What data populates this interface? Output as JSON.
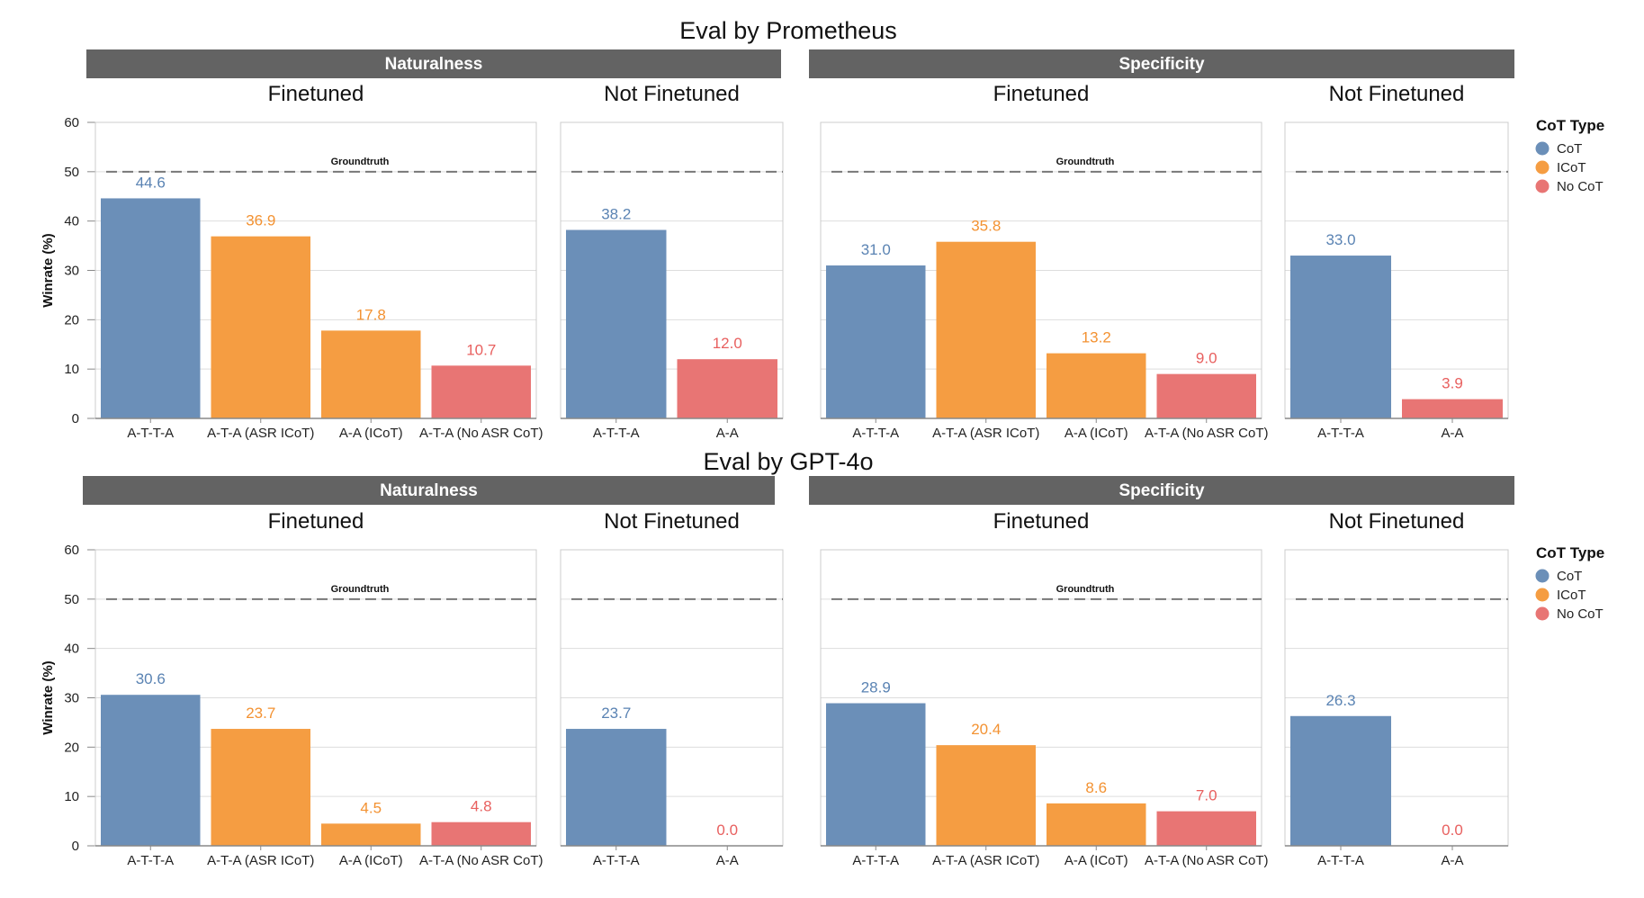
{
  "colors": {
    "cot": "#6b8fb8",
    "icot": "#f59d42",
    "nocot": "#e87574",
    "cot_label": "#5a83b3",
    "icot_label": "#f39232",
    "nocot_label": "#e8605f",
    "strip": "#636363",
    "strip_text": "#ffffff",
    "grid": "#dddddd",
    "frame": "#cccccc",
    "axis": "#888888",
    "groundtruth_line": "#777777"
  },
  "chart_data": [
    {
      "type": "bar",
      "title": "Eval by Prometheus",
      "ylabel": "Winrate (%)",
      "ylim": [
        0,
        60
      ],
      "yticks": [
        0,
        10,
        20,
        30,
        40,
        50,
        60
      ],
      "groundtruth": {
        "label": "Groundtruth",
        "value": 50
      },
      "legend": {
        "title": "CoT Type",
        "position": "right",
        "items": [
          {
            "key": "cot",
            "label": "CoT"
          },
          {
            "key": "icot",
            "label": "ICoT"
          },
          {
            "key": "nocot",
            "label": "No CoT"
          }
        ]
      },
      "facets": [
        {
          "metric": "Naturalness",
          "groups": [
            {
              "name": "Finetuned",
              "categories": [
                "A-T-T-A",
                "A-T-A (ASR ICoT)",
                "A-A (ICoT)",
                "A-T-A (No ASR CoT)"
              ],
              "types": [
                "cot",
                "icot",
                "icot",
                "nocot"
              ],
              "values": [
                44.6,
                36.9,
                17.8,
                10.7
              ],
              "labels": [
                "44.6",
                "36.9",
                "17.8",
                "10.7"
              ]
            },
            {
              "name": "Not Finetuned",
              "categories": [
                "A-T-T-A",
                "A-A"
              ],
              "types": [
                "cot",
                "nocot"
              ],
              "values": [
                38.2,
                12.0
              ],
              "labels": [
                "38.2",
                "12.0"
              ]
            }
          ]
        },
        {
          "metric": "Specificity",
          "groups": [
            {
              "name": "Finetuned",
              "categories": [
                "A-T-T-A",
                "A-T-A (ASR ICoT)",
                "A-A (ICoT)",
                "A-T-A (No ASR CoT)"
              ],
              "types": [
                "cot",
                "icot",
                "icot",
                "nocot"
              ],
              "values": [
                31.0,
                35.8,
                13.2,
                9.0
              ],
              "labels": [
                "31.0",
                "35.8",
                "13.2",
                "9.0"
              ]
            },
            {
              "name": "Not Finetuned",
              "categories": [
                "A-T-T-A",
                "A-A"
              ],
              "types": [
                "cot",
                "nocot"
              ],
              "values": [
                33.0,
                3.9
              ],
              "labels": [
                "33.0",
                "3.9"
              ]
            }
          ]
        }
      ]
    },
    {
      "type": "bar",
      "title": "Eval by GPT-4o",
      "ylabel": "Winrate (%)",
      "ylim": [
        0,
        60
      ],
      "yticks": [
        0,
        10,
        20,
        30,
        40,
        50,
        60
      ],
      "groundtruth": {
        "label": "Groundtruth",
        "value": 50
      },
      "legend": {
        "title": "CoT Type",
        "position": "right",
        "items": [
          {
            "key": "cot",
            "label": "CoT"
          },
          {
            "key": "icot",
            "label": "ICoT"
          },
          {
            "key": "nocot",
            "label": "No CoT"
          }
        ]
      },
      "facets": [
        {
          "metric": "Naturalness",
          "groups": [
            {
              "name": "Finetuned",
              "categories": [
                "A-T-T-A",
                "A-T-A (ASR ICoT)",
                "A-A (ICoT)",
                "A-T-A (No ASR CoT)"
              ],
              "types": [
                "cot",
                "icot",
                "icot",
                "nocot"
              ],
              "values": [
                30.6,
                23.7,
                4.5,
                4.8
              ],
              "labels": [
                "30.6",
                "23.7",
                "4.5",
                "4.8"
              ]
            },
            {
              "name": "Not Finetuned",
              "categories": [
                "A-T-T-A",
                "A-A"
              ],
              "types": [
                "cot",
                "nocot"
              ],
              "values": [
                23.7,
                0.0
              ],
              "labels": [
                "23.7",
                "0.0"
              ]
            }
          ]
        },
        {
          "metric": "Specificity",
          "groups": [
            {
              "name": "Finetuned",
              "categories": [
                "A-T-T-A",
                "A-T-A (ASR ICoT)",
                "A-A (ICoT)",
                "A-T-A (No ASR CoT)"
              ],
              "types": [
                "cot",
                "icot",
                "icot",
                "nocot"
              ],
              "values": [
                28.9,
                20.4,
                8.6,
                7.0
              ],
              "labels": [
                "28.9",
                "20.4",
                "8.6",
                "7.0"
              ]
            },
            {
              "name": "Not Finetuned",
              "categories": [
                "A-T-T-A",
                "A-A"
              ],
              "types": [
                "cot",
                "nocot"
              ],
              "values": [
                26.3,
                0.0
              ],
              "labels": [
                "26.3",
                "0.0"
              ]
            }
          ]
        }
      ]
    }
  ]
}
